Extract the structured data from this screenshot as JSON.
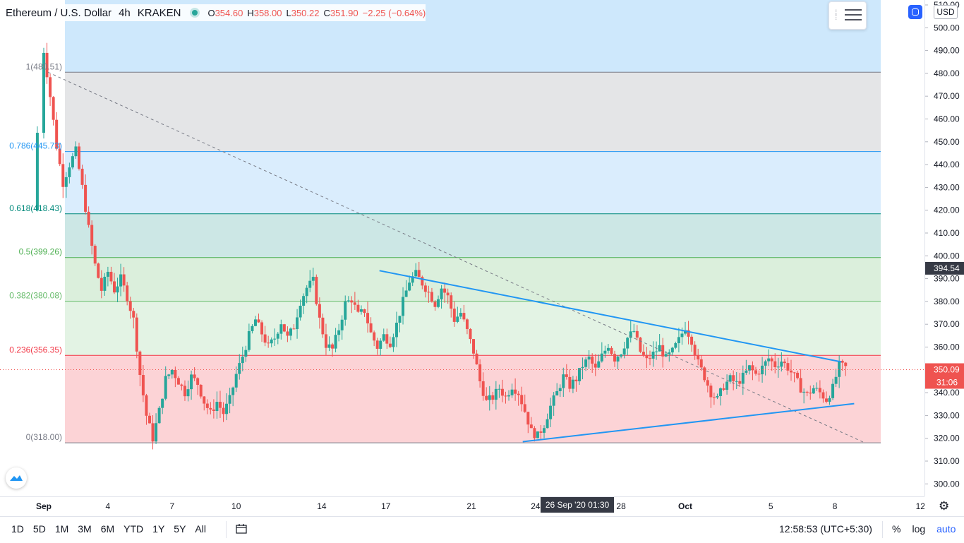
{
  "legend": {
    "symbol": "Ethereum / U.S. Dollar",
    "interval": "4h",
    "exchange": "KRAKEN",
    "open_label": "O",
    "open": "354.60",
    "high_label": "H",
    "high": "358.00",
    "low_label": "L",
    "low": "350.22",
    "close_label": "C",
    "close": "351.90",
    "change": "−2.25 (−0.64%)"
  },
  "currency": "USD",
  "crosshair_price": "394.54",
  "last_price": "350.09",
  "countdown": "31:06",
  "crosshair_time": "26 Sep '20   01:30",
  "clock": "12:58:53 (UTC+5:30)",
  "ranges": [
    "1D",
    "5D",
    "1M",
    "3M",
    "6M",
    "YTD",
    "1Y",
    "5Y",
    "All"
  ],
  "options": {
    "percent": "%",
    "log": "log",
    "auto": "auto"
  },
  "colors": {
    "up": "#26a69a",
    "down": "#ef5350",
    "trend": "#2196f3",
    "accent": "#2962ff"
  },
  "chart_data": {
    "type": "candlestick",
    "title": "Ethereum / U.S. Dollar",
    "y_range": [
      295,
      513
    ],
    "y_ticks": [
      300,
      310,
      320,
      330,
      340,
      350,
      360,
      370,
      380,
      390,
      400,
      410,
      420,
      430,
      440,
      450,
      460,
      470,
      480,
      490,
      500,
      510
    ],
    "x_range": [
      0,
      38.5
    ],
    "x_ticks": [
      {
        "label": "Sep",
        "day": 1
      },
      {
        "label": "4",
        "day": 4
      },
      {
        "label": "7",
        "day": 7
      },
      {
        "label": "10",
        "day": 10
      },
      {
        "label": "14",
        "day": 14
      },
      {
        "label": "17",
        "day": 17
      },
      {
        "label": "21",
        "day": 21
      },
      {
        "label": "24",
        "day": 24
      },
      {
        "label": "28",
        "day": 28
      },
      {
        "label": "Oct",
        "day": 31
      },
      {
        "label": "5",
        "day": 35
      },
      {
        "label": "8",
        "day": 38
      },
      {
        "label": "12",
        "day": 42
      }
    ],
    "fibonacci": [
      {
        "ratio": "1",
        "price": 480.51,
        "label": "1(480.51)",
        "color": "#787b86",
        "fill": "rgba(120,123,134,0.2)"
      },
      {
        "ratio": "0.786",
        "price": 445.73,
        "label": "0.786(445.73)",
        "color": "#2196f3",
        "fill": "rgba(33,150,243,0.17)"
      },
      {
        "ratio": "0.618",
        "price": 418.43,
        "label": "0.618(418.43)",
        "color": "#00897b",
        "fill": "rgba(0,137,123,0.2)"
      },
      {
        "ratio": "0.5",
        "price": 399.26,
        "label": "0.5(399.26)",
        "color": "#4caf50",
        "fill": "rgba(76,175,80,0.2)"
      },
      {
        "ratio": "0.382",
        "price": 380.08,
        "label": "0.382(380.08)",
        "color": "#66bb6a",
        "fill": "rgba(102,187,106,0.18)"
      },
      {
        "ratio": "0.236",
        "price": 356.35,
        "label": "0.236(356.35)",
        "color": "#f23645",
        "fill": "rgba(242,54,69,0.22)"
      },
      {
        "ratio": "0",
        "price": 318.0,
        "label": "0(318.00)",
        "color": "#787b86",
        "fill": ""
      }
    ],
    "fib_above_fill": "rgba(33,150,243,0.22)",
    "trendlines": [
      {
        "from": [
          16.7,
          393.5
        ],
        "to": [
          38.3,
          353.5
        ]
      },
      {
        "from": [
          23.4,
          318.5
        ],
        "to": [
          38.9,
          335.2
        ]
      }
    ],
    "diagonal": {
      "from": [
        1.2,
        480.5
      ],
      "to": [
        39.4,
        318.0
      ]
    },
    "anchor_points": [
      [
        1.0,
        490,
        1
      ],
      [
        1.3,
        470,
        0
      ],
      [
        1.6,
        448,
        0
      ],
      [
        1.9,
        432,
        0
      ],
      [
        2.2,
        440,
        1
      ],
      [
        2.5,
        446,
        1
      ],
      [
        2.8,
        430,
        0
      ],
      [
        3.1,
        412,
        0
      ],
      [
        3.4,
        396,
        0
      ],
      [
        3.7,
        385,
        0
      ],
      [
        4.0,
        393,
        1
      ],
      [
        4.3,
        385,
        0
      ],
      [
        4.6,
        390,
        1
      ],
      [
        4.9,
        382,
        0
      ],
      [
        5.2,
        372,
        0
      ],
      [
        5.5,
        348,
        0
      ],
      [
        5.8,
        330,
        0
      ],
      [
        6.1,
        320,
        0
      ],
      [
        6.4,
        332,
        1
      ],
      [
        6.7,
        346,
        1
      ],
      [
        7.0,
        350,
        1
      ],
      [
        7.3,
        345,
        0
      ],
      [
        7.6,
        340,
        0
      ],
      [
        7.9,
        347,
        1
      ],
      [
        8.2,
        344,
        0
      ],
      [
        8.5,
        336,
        0
      ],
      [
        8.8,
        331,
        0
      ],
      [
        9.1,
        336,
        1
      ],
      [
        9.4,
        331,
        0
      ],
      [
        9.7,
        337,
        1
      ],
      [
        10.0,
        348,
        1
      ],
      [
        10.3,
        356,
        1
      ],
      [
        10.6,
        365,
        1
      ],
      [
        10.9,
        372,
        1
      ],
      [
        11.2,
        366,
        0
      ],
      [
        11.5,
        360,
        0
      ],
      [
        11.8,
        364,
        1
      ],
      [
        12.1,
        371,
        1
      ],
      [
        12.4,
        364,
        0
      ],
      [
        12.7,
        369,
        1
      ],
      [
        13.0,
        380,
        1
      ],
      [
        13.3,
        386,
        1
      ],
      [
        13.6,
        389,
        1
      ],
      [
        13.9,
        372,
        0
      ],
      [
        14.2,
        361,
        0
      ],
      [
        14.5,
        359,
        0
      ],
      [
        14.8,
        368,
        1
      ],
      [
        15.1,
        379,
        1
      ],
      [
        15.4,
        381,
        1
      ],
      [
        15.7,
        374,
        0
      ],
      [
        16.0,
        376,
        1
      ],
      [
        16.3,
        366,
        0
      ],
      [
        16.6,
        360,
        0
      ],
      [
        16.9,
        365,
        1
      ],
      [
        17.2,
        362,
        0
      ],
      [
        17.5,
        370,
        1
      ],
      [
        17.8,
        380,
        1
      ],
      [
        18.1,
        389,
        1
      ],
      [
        18.4,
        392,
        1
      ],
      [
        18.7,
        388,
        0
      ],
      [
        19.0,
        384,
        0
      ],
      [
        19.3,
        379,
        0
      ],
      [
        19.6,
        386,
        1
      ],
      [
        19.9,
        382,
        0
      ],
      [
        20.2,
        372,
        0
      ],
      [
        20.5,
        375,
        1
      ],
      [
        20.8,
        367,
        0
      ],
      [
        21.1,
        358,
        0
      ],
      [
        21.4,
        345,
        0
      ],
      [
        21.7,
        336,
        0
      ],
      [
        22.0,
        338,
        1
      ],
      [
        22.3,
        342,
        1
      ],
      [
        22.6,
        338,
        0
      ],
      [
        22.9,
        343,
        1
      ],
      [
        23.2,
        340,
        0
      ],
      [
        23.5,
        332,
        0
      ],
      [
        23.8,
        323,
        0
      ],
      [
        24.1,
        321,
        0
      ],
      [
        24.4,
        326,
        1
      ],
      [
        24.7,
        334,
        1
      ],
      [
        25.0,
        340,
        1
      ],
      [
        25.3,
        347,
        1
      ],
      [
        25.6,
        343,
        0
      ],
      [
        25.9,
        346,
        1
      ],
      [
        26.2,
        352,
        1
      ],
      [
        26.5,
        355,
        1
      ],
      [
        26.8,
        350,
        0
      ],
      [
        27.1,
        356,
        1
      ],
      [
        27.4,
        361,
        1
      ],
      [
        27.7,
        355,
        0
      ],
      [
        28.0,
        358,
        1
      ],
      [
        28.3,
        364,
        1
      ],
      [
        28.6,
        367,
        1
      ],
      [
        28.9,
        358,
        0
      ],
      [
        29.2,
        354,
        0
      ],
      [
        29.5,
        357,
        1
      ],
      [
        29.8,
        360,
        1
      ],
      [
        30.1,
        355,
        0
      ],
      [
        30.4,
        358,
        1
      ],
      [
        30.7,
        363,
        1
      ],
      [
        31.0,
        369,
        1
      ],
      [
        31.3,
        363,
        0
      ],
      [
        31.6,
        353,
        0
      ],
      [
        31.9,
        347,
        0
      ],
      [
        32.2,
        340,
        0
      ],
      [
        32.5,
        337,
        0
      ],
      [
        32.8,
        343,
        1
      ],
      [
        33.1,
        346,
        1
      ],
      [
        33.4,
        344,
        0
      ],
      [
        33.7,
        347,
        1
      ],
      [
        34.0,
        351,
        1
      ],
      [
        34.3,
        348,
        0
      ],
      [
        34.6,
        351,
        1
      ],
      [
        34.9,
        355,
        1
      ],
      [
        35.2,
        352,
        0
      ],
      [
        35.5,
        354,
        1
      ],
      [
        35.8,
        351,
        0
      ],
      [
        36.1,
        347,
        0
      ],
      [
        36.4,
        342,
        0
      ],
      [
        36.7,
        339,
        0
      ],
      [
        37.0,
        342,
        1
      ],
      [
        37.3,
        340,
        0
      ],
      [
        37.6,
        337,
        0
      ],
      [
        37.9,
        342,
        1
      ],
      [
        38.2,
        352,
        1
      ],
      [
        38.5,
        351,
        0
      ]
    ]
  }
}
